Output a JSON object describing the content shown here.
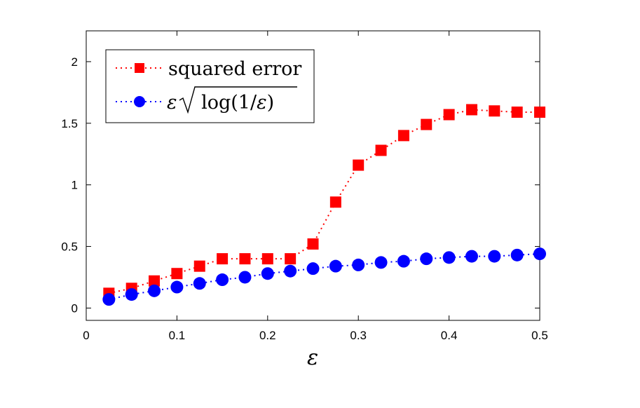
{
  "chart_data": {
    "type": "line",
    "title": "",
    "xlabel": "ε",
    "ylabel": "",
    "xlim": [
      0,
      0.5
    ],
    "ylim": [
      -0.1,
      2.25
    ],
    "xticks": [
      0,
      0.1,
      0.2,
      0.3,
      0.4,
      0.5
    ],
    "xtick_labels": [
      "0",
      "0.1",
      "0.2",
      "0.3",
      "0.4",
      "0.5"
    ],
    "yticks": [
      0,
      0.5,
      1,
      1.5,
      2
    ],
    "ytick_labels": [
      "0",
      "0.5",
      "1",
      "1.5",
      "2"
    ],
    "grid": false,
    "legend_position": "top-left",
    "x": [
      0.025,
      0.05,
      0.075,
      0.1,
      0.125,
      0.15,
      0.175,
      0.2,
      0.225,
      0.25,
      0.275,
      0.3,
      0.325,
      0.35,
      0.375,
      0.4,
      0.425,
      0.45,
      0.475,
      0.5
    ],
    "series": [
      {
        "name": "squared error",
        "color": "#ff0000",
        "marker": "square",
        "line_style": "dotted",
        "values": [
          0.12,
          0.16,
          0.22,
          0.28,
          0.34,
          0.4,
          0.4,
          0.4,
          0.4,
          0.52,
          0.86,
          1.16,
          1.28,
          1.4,
          1.49,
          1.57,
          1.61,
          1.6,
          1.59,
          1.59
        ]
      },
      {
        "name": "ε√log(1/ε)",
        "color": "#0000ff",
        "marker": "circle",
        "line_style": "dotted",
        "values": [
          0.07,
          0.11,
          0.14,
          0.17,
          0.2,
          0.23,
          0.25,
          0.28,
          0.3,
          0.32,
          0.34,
          0.35,
          0.37,
          0.38,
          0.4,
          0.41,
          0.42,
          0.42,
          0.43,
          0.44
        ]
      }
    ],
    "legend": {
      "entries": [
        {
          "label": "squared error"
        },
        {
          "label_prefix": "ε",
          "label_radicand": "log(1/",
          "label_radicand_var": "ε",
          "label_radicand_close": ")"
        }
      ]
    }
  }
}
